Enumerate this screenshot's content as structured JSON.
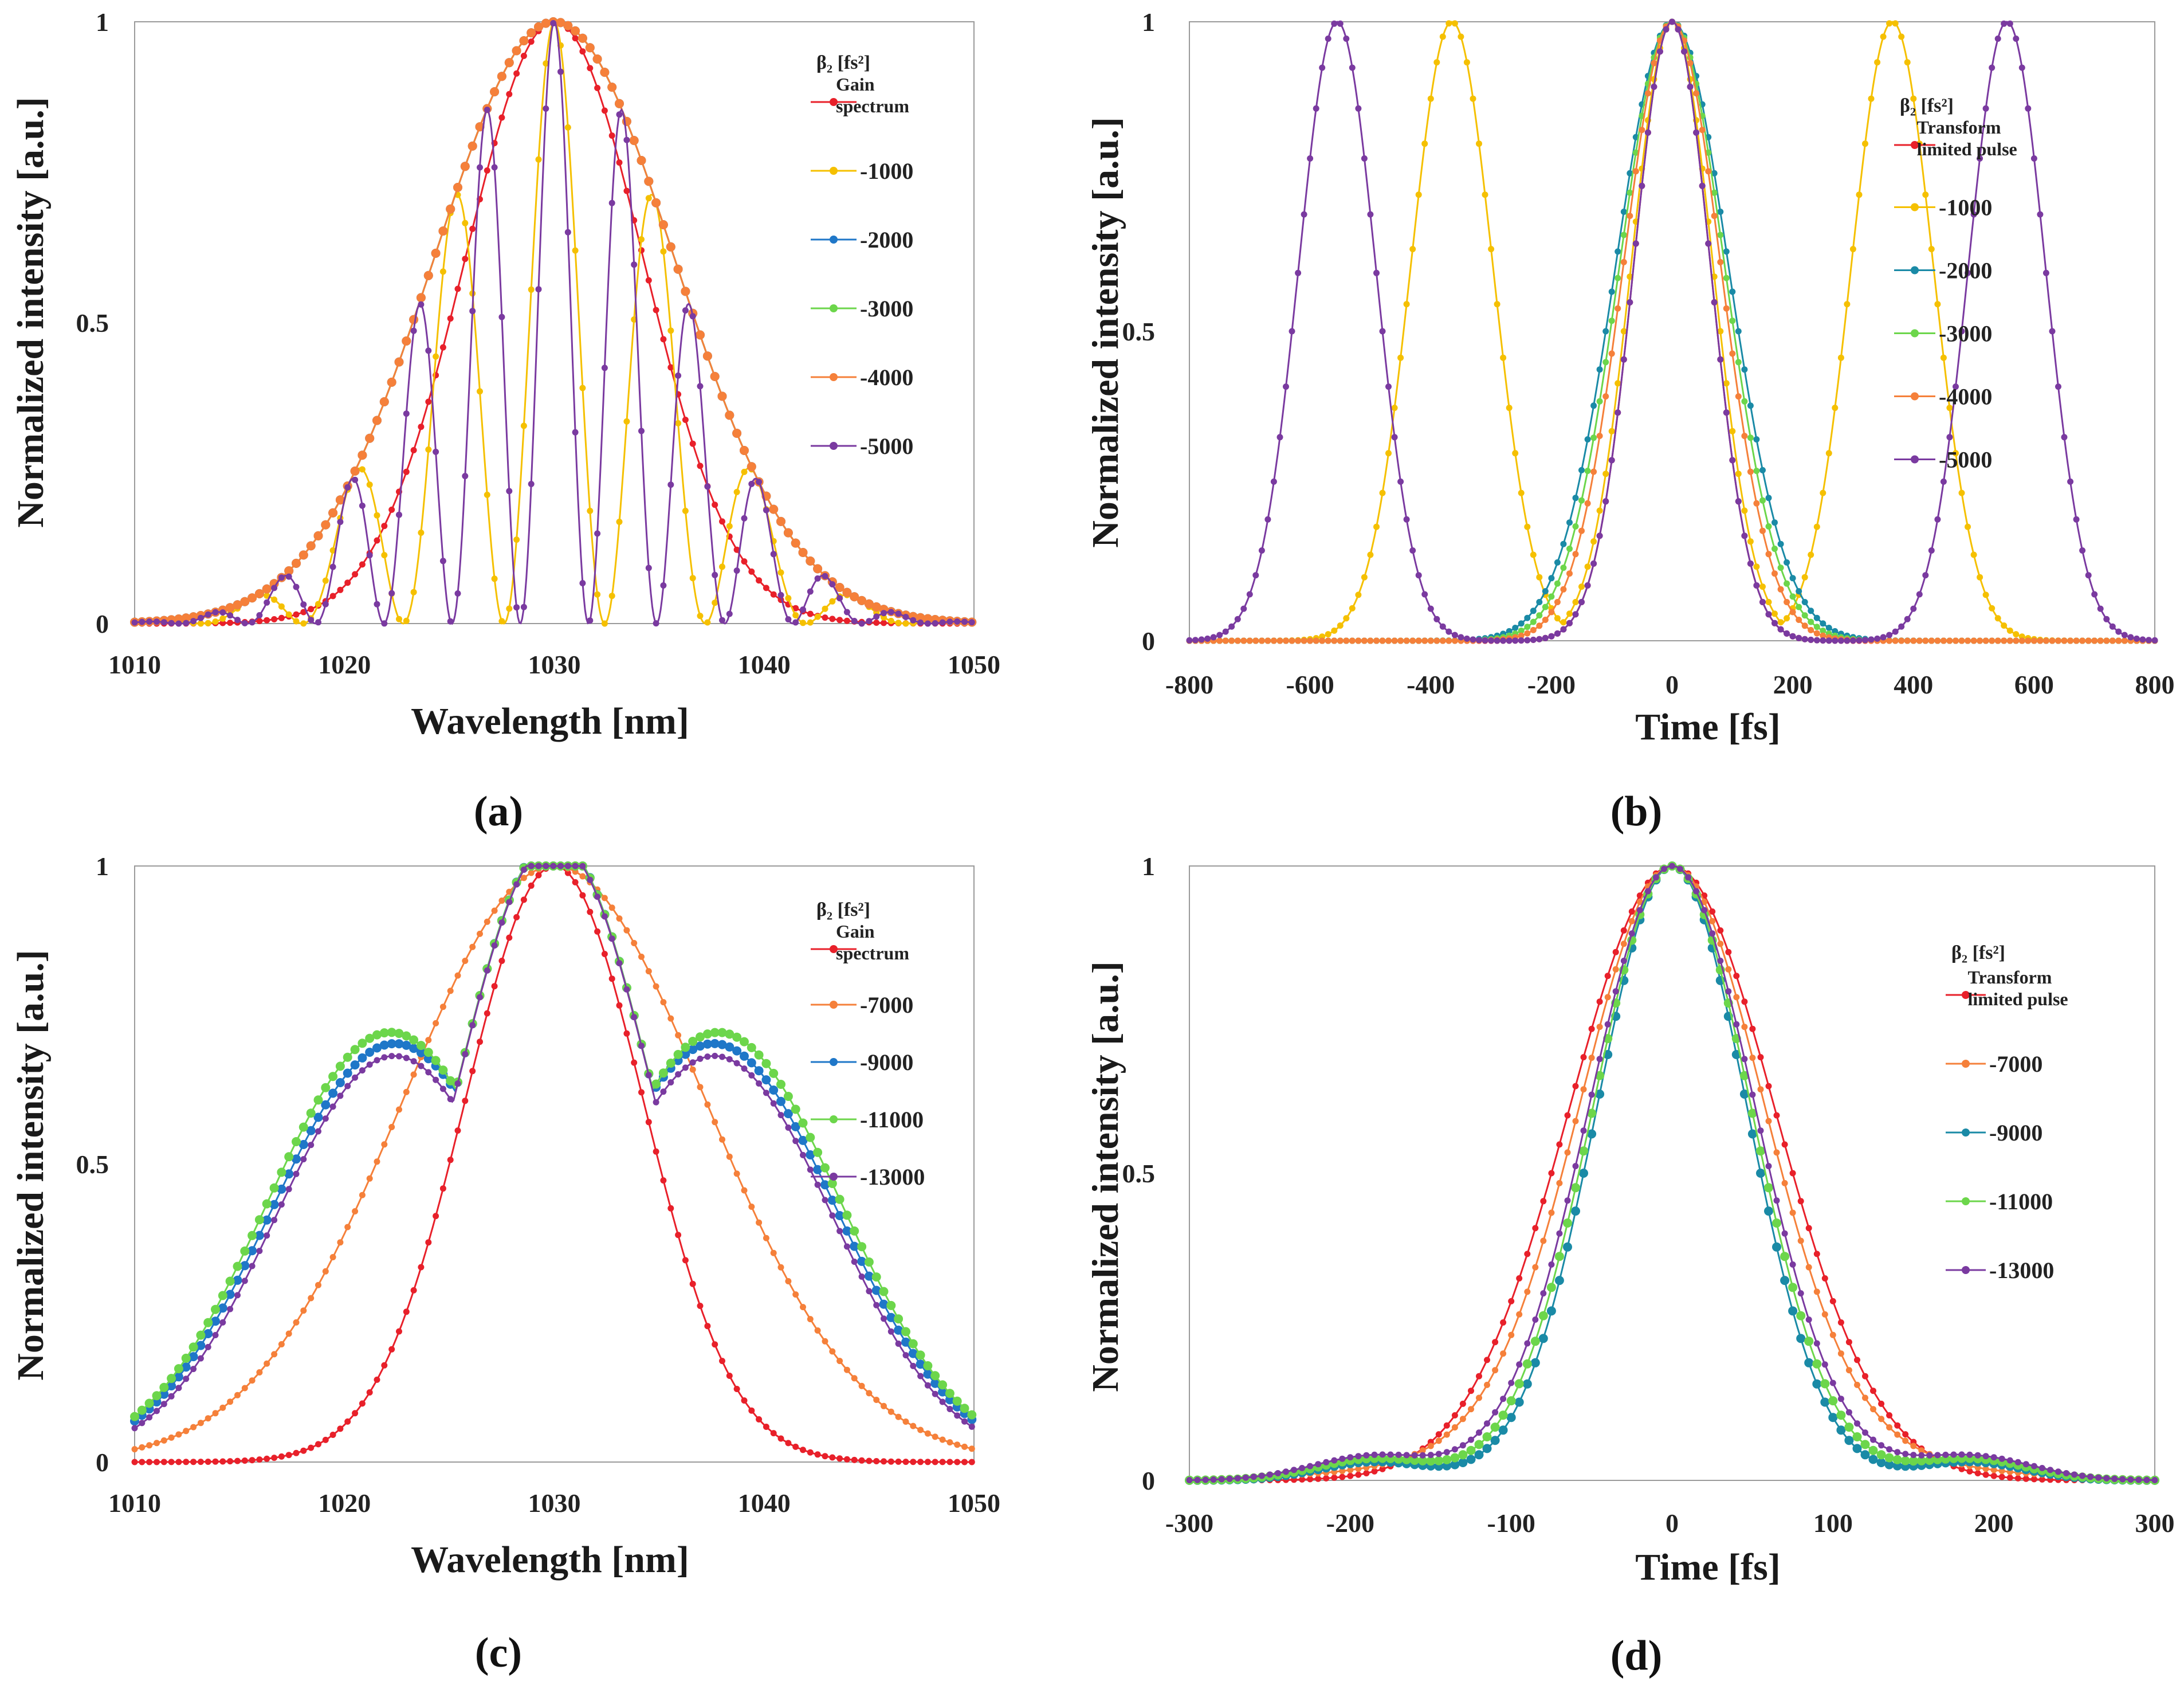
{
  "chart_data": [
    {
      "id": "a",
      "type": "line",
      "caption_letter": "a",
      "xlabel": "Wavelength [nm]",
      "ylabel": "Normalized intensity [a.u.]",
      "xlim": [
        1010,
        1050
      ],
      "ylim": [
        0,
        1
      ],
      "xticks": [
        "1010",
        "1020",
        "1030",
        "1040",
        "1050"
      ],
      "yticks": [
        "0",
        "0.5",
        "1"
      ],
      "legend_title": "β₂ [fs²]",
      "legend_position": "right",
      "series": [
        {
          "name": "Gain spectrum",
          "name_lines": [
            "Gain",
            "spectrum"
          ],
          "color": "#e8202a",
          "kind": "gauss",
          "center": 1030,
          "fwhm": 10.0,
          "step": 0.35
        },
        {
          "name": "-1000",
          "color": "#f5c000",
          "kind": "sinc2",
          "center": 1030,
          "gfwhm": 13.5,
          "period": 9.6,
          "step": 0.35
        },
        {
          "name": "-2000",
          "color": "#1f77c8",
          "kind": "gauss",
          "center": 1030,
          "fwhm": 13.5,
          "step": 0.35
        },
        {
          "name": "-3000",
          "color": "#6cd64b",
          "kind": "gauss",
          "center": 1030,
          "fwhm": 13.5,
          "step": 0.35
        },
        {
          "name": "-4000",
          "color": "#f5803a",
          "kind": "gauss",
          "center": 1030,
          "fwhm": 13.5,
          "step": 0.35
        },
        {
          "name": "-5000",
          "color": "#7a3aa0",
          "kind": "sinc2",
          "center": 1030,
          "gfwhm": 13.5,
          "period": 6.5,
          "step": 0.35
        }
      ],
      "peak_value": 1
    },
    {
      "id": "b",
      "type": "line",
      "caption_letter": "b",
      "xlabel": "Time [fs]",
      "ylabel": "Normalized intensity [a.u.]",
      "xlim": [
        -800,
        800
      ],
      "ylim": [
        0,
        1
      ],
      "xticks": [
        "-800",
        "-600",
        "-400",
        "-200",
        "0",
        "200",
        "400",
        "600",
        "800"
      ],
      "yticks": [
        "0",
        "0.5",
        "1"
      ],
      "legend_title": "β₂ [fs²]",
      "legend_position": "right",
      "series": [
        {
          "name": "Transform limited pulse",
          "name_lines": [
            "Transform",
            "limited  pulse"
          ],
          "color": "#e8202a",
          "kind": "gaussmulti",
          "centers": [
            0
          ],
          "fwhm": 150,
          "step": 10
        },
        {
          "name": "-1000",
          "color": "#f5c000",
          "kind": "gaussmulti",
          "centers": [
            -365,
            0,
            365
          ],
          "fwhm": 160,
          "step": 10
        },
        {
          "name": "-2000",
          "color": "#1a8aa6",
          "kind": "gaussmulti",
          "centers": [
            0
          ],
          "fwhm": 220,
          "step": 10
        },
        {
          "name": "-3000",
          "color": "#6cd64b",
          "kind": "gaussmulti",
          "centers": [
            0
          ],
          "fwhm": 205,
          "step": 10
        },
        {
          "name": "-4000",
          "color": "#f5803a",
          "kind": "gaussmulti",
          "centers": [
            0
          ],
          "fwhm": 190,
          "step": 10
        },
        {
          "name": "-5000",
          "color": "#7a3aa0",
          "kind": "gaussmulti",
          "centers": [
            -555,
            0,
            555
          ],
          "fwhm": 150,
          "step": 10
        }
      ],
      "peak_value": 1
    },
    {
      "id": "c",
      "type": "line",
      "caption_letter": "c",
      "xlabel": "Wavelength [nm]",
      "ylabel": "Normalized intensity [a.u.]",
      "xlim": [
        1010,
        1050
      ],
      "ylim": [
        0,
        1
      ],
      "xticks": [
        "1010",
        "1020",
        "1030",
        "1040",
        "1050"
      ],
      "yticks": [
        "0",
        "0.5",
        "1"
      ],
      "legend_title": "β₂ [fs²]",
      "legend_position": "right",
      "series": [
        {
          "name": "Gain spectrum",
          "name_lines": [
            "Gain",
            "spectrum"
          ],
          "color": "#e8202a",
          "kind": "gauss",
          "center": 1030,
          "fwhm": 10.0,
          "step": 0.35
        },
        {
          "name": "-7000",
          "color": "#f5803a",
          "kind": "gauss",
          "center": 1030,
          "fwhm": 17.0,
          "step": 0.35
        },
        {
          "name": "-9000",
          "color": "#1f77c8",
          "kind": "shoulder",
          "center": 1030,
          "fwhm": 10.5,
          "sw": 0.68,
          "so": 8.0,
          "ss": 6.0,
          "step": 0.35
        },
        {
          "name": "-11000",
          "color": "#6cd64b",
          "kind": "shoulder",
          "center": 1030,
          "fwhm": 10.5,
          "sw": 0.7,
          "so": 8.2,
          "ss": 6.0,
          "step": 0.35
        },
        {
          "name": "-13000",
          "color": "#7a3aa0",
          "kind": "shoulder",
          "center": 1030,
          "fwhm": 10.5,
          "sw": 0.66,
          "so": 8.0,
          "ss": 5.8,
          "step": 0.35
        }
      ],
      "peak_value": 1
    },
    {
      "id": "d",
      "type": "line",
      "caption_letter": "d",
      "xlabel": "Time [fs]",
      "ylabel": "Normalized intensity [a.u.]",
      "xlim": [
        -300,
        300
      ],
      "ylim": [
        0,
        1
      ],
      "xticks": [
        "-300",
        "-200",
        "-100",
        "0",
        "100",
        "200",
        "300"
      ],
      "yticks": [
        "0",
        "0.5",
        "1"
      ],
      "legend_title": "β₂ [fs²]",
      "legend_position": "right",
      "series": [
        {
          "name": "Transform limited pulse",
          "name_lines": [
            "Transform",
            "limited  pulse"
          ],
          "color": "#e8202a",
          "kind": "gauss",
          "center": 0,
          "fwhm": 150,
          "step": 5
        },
        {
          "name": "-7000",
          "color": "#f5803a",
          "kind": "gausswing",
          "center": 0,
          "fwhm": 130,
          "ww": 0.08,
          "wf": 260,
          "step": 5
        },
        {
          "name": "-9000",
          "color": "#1a8aa6",
          "kind": "sidelobe",
          "center": 0,
          "fwhm": 110,
          "la": 0.03,
          "lo": 185,
          "lf": 80,
          "step": 5
        },
        {
          "name": "-11000",
          "color": "#6cd64b",
          "kind": "sidelobe",
          "center": 0,
          "fwhm": 116,
          "la": 0.035,
          "lo": 185,
          "lf": 85,
          "step": 5
        },
        {
          "name": "-13000",
          "color": "#7a3aa0",
          "kind": "sidelobe",
          "center": 0,
          "fwhm": 122,
          "la": 0.04,
          "lo": 185,
          "lf": 90,
          "step": 5
        }
      ],
      "peak_value": 1
    }
  ]
}
